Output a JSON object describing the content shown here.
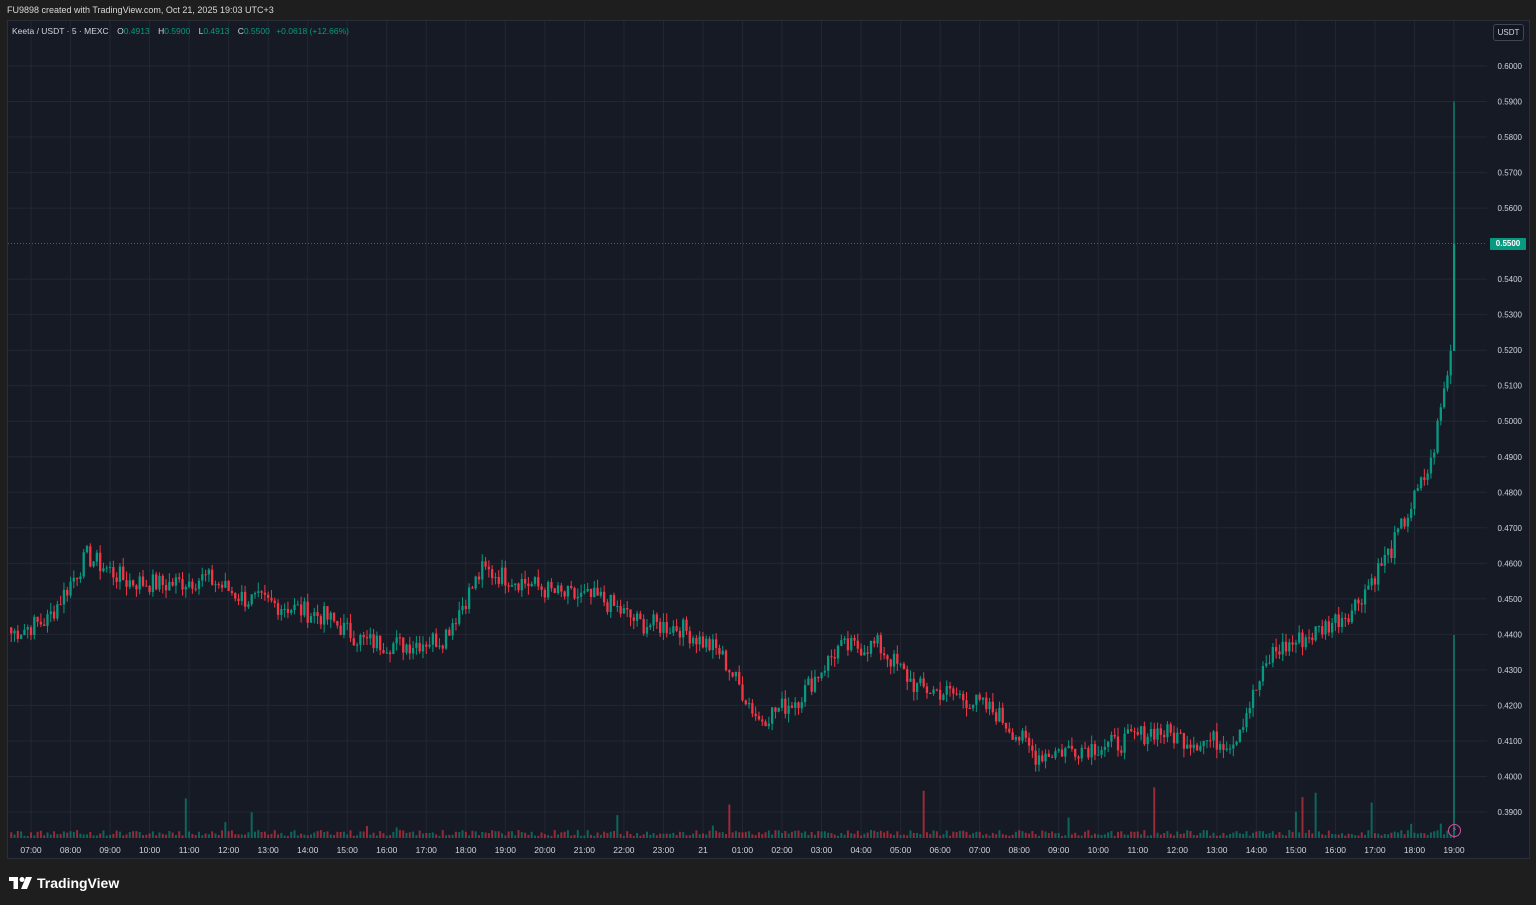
{
  "header": {
    "created_text": "FU9898 created with TradingView.com, Oct 21, 2025 19:03 UTC+3"
  },
  "legend": {
    "symbol": "Keeta / USDT · 5 · MEXC",
    "open_label": "O",
    "open": "0.4913",
    "high_label": "H",
    "high": "0.5900",
    "low_label": "L",
    "low": "0.4913",
    "close_label": "C",
    "close": "0.5500",
    "change": "+0.0618 (+12.66%)"
  },
  "price_scale": {
    "currency": "USDT",
    "labels": [
      "0.6000",
      "0.5900",
      "0.5800",
      "0.5700",
      "0.5600",
      "0.5400",
      "0.5300",
      "0.5200",
      "0.5100",
      "0.5000",
      "0.4900",
      "0.4800",
      "0.4700",
      "0.4600",
      "0.4500",
      "0.4400",
      "0.4300",
      "0.4200",
      "0.4100",
      "0.4000",
      "0.3900"
    ],
    "last_price": "0.5500"
  },
  "time_scale": {
    "labels": [
      "07:00",
      "08:00",
      "09:00",
      "10:00",
      "11:00",
      "12:00",
      "13:00",
      "14:00",
      "15:00",
      "16:00",
      "17:00",
      "18:00",
      "19:00",
      "20:00",
      "21:00",
      "22:00",
      "23:00",
      "21",
      "01:00",
      "02:00",
      "03:00",
      "04:00",
      "05:00",
      "06:00",
      "07:00",
      "08:00",
      "09:00",
      "10:00",
      "11:00",
      "12:00",
      "13:00",
      "14:00",
      "15:00",
      "16:00",
      "17:00",
      "18:00",
      "19:00"
    ]
  },
  "colors": {
    "up": "#089981",
    "down": "#f23645",
    "background": "#161a25",
    "grid": "#232734"
  },
  "footer": {
    "logo_text": "TradingView",
    "logo_icon": "tradingview-logo-icon"
  },
  "alert_icon": "lightning-icon",
  "chart_data": {
    "type": "candlestick",
    "title": "Keeta / USDT · 5 · MEXC",
    "ylim": [
      0.385,
      0.605
    ],
    "x": [
      "07:00",
      "08:00",
      "09:00",
      "10:00",
      "11:00",
      "12:00",
      "13:00",
      "14:00",
      "15:00",
      "16:00",
      "17:00",
      "18:00",
      "19:00",
      "20:00",
      "21:00",
      "22:00",
      "23:00",
      "21",
      "01:00",
      "02:00",
      "03:00",
      "04:00",
      "05:00",
      "06:00",
      "07:00",
      "08:00",
      "09:00",
      "10:00",
      "11:00",
      "12:00",
      "13:00",
      "14:00",
      "15:00",
      "16:00",
      "17:00",
      "18:00",
      "19:00"
    ],
    "close": [
      0.444,
      0.462,
      0.455,
      0.454,
      0.456,
      0.45,
      0.448,
      0.445,
      0.438,
      0.437,
      0.439,
      0.458,
      0.455,
      0.451,
      0.45,
      0.443,
      0.442,
      0.435,
      0.416,
      0.422,
      0.436,
      0.437,
      0.425,
      0.423,
      0.418,
      0.406,
      0.408,
      0.409,
      0.413,
      0.41,
      0.41,
      0.435,
      0.44,
      0.447,
      0.464,
      0.488,
      0.55
    ],
    "high_markers": {
      "session_high": 0.59,
      "last": 0.55
    }
  }
}
